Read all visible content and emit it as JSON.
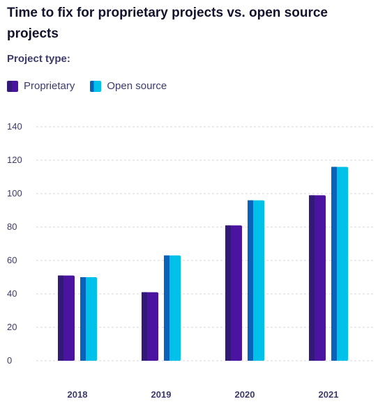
{
  "chart_data": {
    "type": "bar",
    "title": "Time to fix for proprietary projects vs. open source projects",
    "legend_title": "Project type:",
    "legend_position": "top-left",
    "categories": [
      "2018",
      "2019",
      "2020",
      "2021"
    ],
    "series": [
      {
        "name": "Proprietary",
        "values": [
          51,
          41,
          81,
          99
        ],
        "color": "#4a14a0",
        "shade": "#331a78"
      },
      {
        "name": "Open source",
        "values": [
          50,
          63,
          96,
          116
        ],
        "color": "#00c1ea",
        "shade": "#0a63b8"
      }
    ],
    "yticks": [
      "0",
      "20",
      "40",
      "60",
      "80",
      "100",
      "120",
      "140"
    ],
    "ylim": [
      0,
      140
    ],
    "grid": true,
    "xlabel": "",
    "ylabel": ""
  }
}
